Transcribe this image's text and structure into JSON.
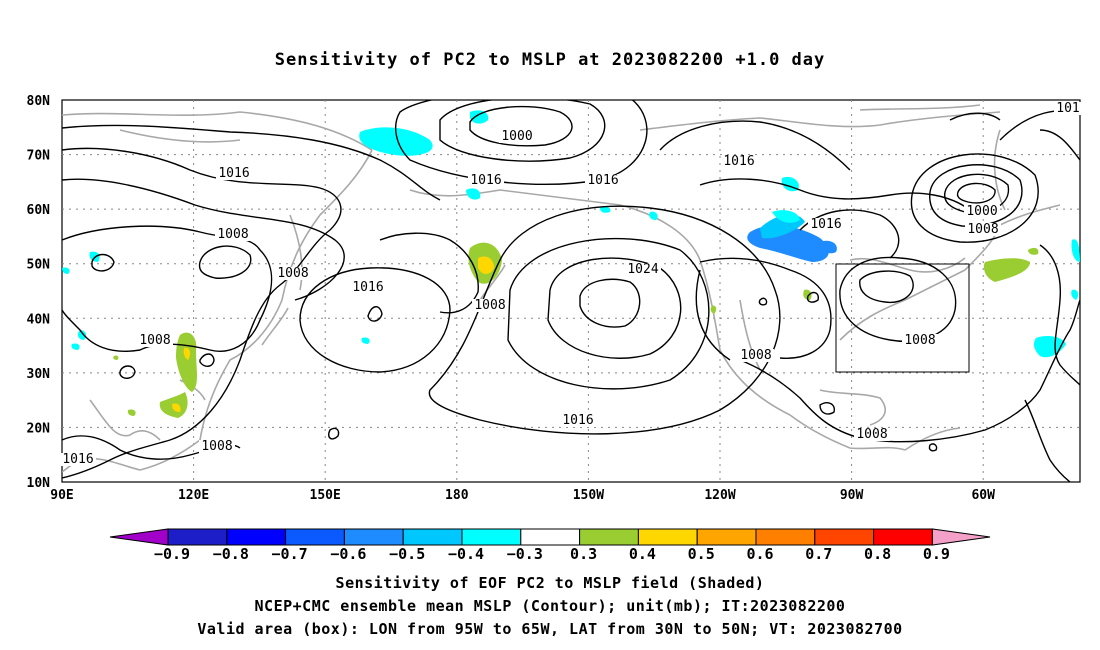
{
  "title": "Sensitivity of PC2 to MSLP at 2023082200 +1.0 day",
  "map": {
    "lat_labels": [
      "80N",
      "70N",
      "60N",
      "50N",
      "40N",
      "30N",
      "20N",
      "10N"
    ],
    "lon_labels": [
      "90E",
      "120E",
      "150E",
      "180",
      "150W",
      "120W",
      "90W",
      "60W"
    ],
    "contour_labels": [
      {
        "text": "1000"
      },
      {
        "text": "1016"
      },
      {
        "text": "1016"
      },
      {
        "text": "1016"
      },
      {
        "text": "1016"
      },
      {
        "text": "1016"
      },
      {
        "text": "1016"
      },
      {
        "text": "1000"
      },
      {
        "text": "1008"
      },
      {
        "text": "1008"
      },
      {
        "text": "1008"
      },
      {
        "text": "1016"
      },
      {
        "text": "1008"
      },
      {
        "text": "1024"
      },
      {
        "text": "1008"
      },
      {
        "text": "1008"
      },
      {
        "text": "1016"
      },
      {
        "text": "1008"
      },
      {
        "text": "1008"
      },
      {
        "text": "1016"
      },
      {
        "text": "1008"
      },
      {
        "text": "101"
      }
    ],
    "valid_box": {
      "lon_from": "95W",
      "lon_to": "65W",
      "lat_from": "30N",
      "lat_to": "50N"
    }
  },
  "colorbar": {
    "colors": [
      "#a000c8",
      "#1e1ec8",
      "#0000ff",
      "#0a5aff",
      "#1e8cff",
      "#00c8ff",
      "#00ffff",
      "#ffffff",
      "#9acd32",
      "#ffd700",
      "#ffa500",
      "#ff7f00",
      "#ff4500",
      "#ff0000",
      "#ff0000",
      "#f5a0c8"
    ],
    "labels": [
      "-0.9",
      "-0.8",
      "-0.7",
      "-0.6",
      "-0.5",
      "-0.4",
      "-0.3",
      "0.3",
      "0.4",
      "0.5",
      "0.6",
      "0.7",
      "0.8",
      "0.9"
    ]
  },
  "captions": [
    "Sensitivity of EOF PC2 to MSLP field (Shaded)",
    "NCEP+CMC ensemble mean MSLP (Contour); unit(mb); IT:2023082200",
    "Valid area (box): LON from 95W to 65W, LAT from 30N to 50N; VT: 2023082700"
  ]
}
